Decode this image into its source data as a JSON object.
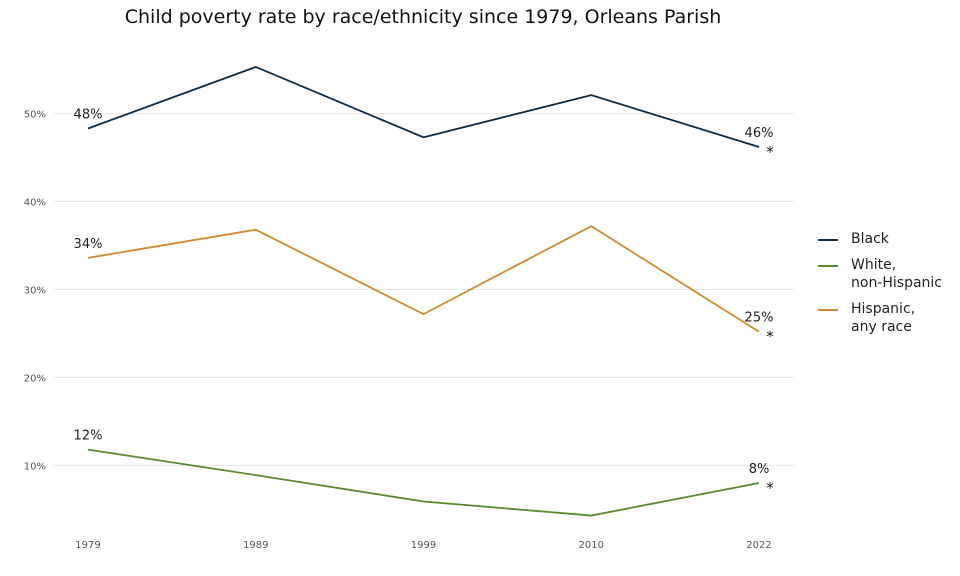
{
  "chart_data": {
    "type": "line",
    "title": "Child poverty rate by race/ethnicity since 1979, Orleans Parish",
    "x": [
      "1979",
      "1989",
      "1999",
      "2010",
      "2022"
    ],
    "y_ticks": [
      "10%",
      "20%",
      "30%",
      "40%",
      "50%"
    ],
    "ylim": [
      3,
      57
    ],
    "grid": "horizontal",
    "legend_position": "right",
    "series": [
      {
        "name": "Black",
        "color": "#0d2b45",
        "values": [
          48.3,
          55.3,
          47.3,
          52.1,
          46.2
        ],
        "start_label": "48%",
        "end_label": "46%",
        "end_mark": "*"
      },
      {
        "name": "White,\nnon-Hispanic",
        "color": "#5a8a2f",
        "values": [
          11.8,
          8.9,
          5.9,
          4.3,
          8.0
        ],
        "start_label": "12%",
        "end_label": "8%",
        "end_mark": "*"
      },
      {
        "name": "Hispanic,\nany race",
        "color": "#d08a2e",
        "values": [
          33.6,
          36.8,
          27.2,
          37.2,
          25.2
        ],
        "start_label": "34%",
        "end_label": "25%",
        "end_mark": "*"
      }
    ]
  }
}
